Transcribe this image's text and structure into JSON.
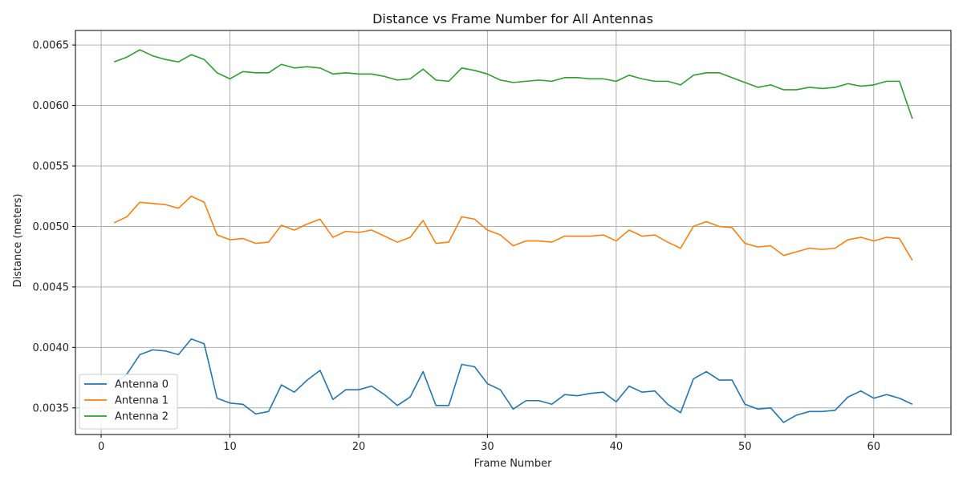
{
  "chart_data": {
    "type": "line",
    "title": "Distance vs Frame Number for All Antennas",
    "xlabel": "Frame Number",
    "ylabel": "Distance (meters)",
    "xlim": [
      -2,
      66
    ],
    "ylim": [
      0.00328,
      0.00662
    ],
    "xticks": [
      0,
      10,
      20,
      30,
      40,
      50,
      60
    ],
    "yticks": [
      0.0035,
      0.004,
      0.0045,
      0.005,
      0.0055,
      0.006,
      0.0065
    ],
    "ytick_labels": [
      "0.0035",
      "0.0040",
      "0.0045",
      "0.0050",
      "0.0055",
      "0.0060",
      "0.0065"
    ],
    "grid": true,
    "legend_position": "lower-left",
    "x": [
      1,
      2,
      3,
      4,
      5,
      6,
      7,
      8,
      9,
      10,
      11,
      12,
      13,
      14,
      15,
      16,
      17,
      18,
      19,
      20,
      21,
      22,
      23,
      24,
      25,
      26,
      27,
      28,
      29,
      30,
      31,
      32,
      33,
      34,
      35,
      36,
      37,
      38,
      39,
      40,
      41,
      42,
      43,
      44,
      45,
      46,
      47,
      48,
      49,
      50,
      51,
      52,
      53,
      54,
      55,
      56,
      57,
      58,
      59,
      60,
      61,
      62,
      63
    ],
    "series": [
      {
        "name": "Antenna 0",
        "color": "#1f77b4",
        "values": [
          0.0037,
          0.00378,
          0.00394,
          0.00398,
          0.00397,
          0.00394,
          0.00407,
          0.00403,
          0.00358,
          0.00354,
          0.00353,
          0.00345,
          0.00347,
          0.00369,
          0.00363,
          0.00373,
          0.00381,
          0.00357,
          0.00365,
          0.00365,
          0.00368,
          0.00361,
          0.00352,
          0.00359,
          0.0038,
          0.00352,
          0.00352,
          0.00386,
          0.00384,
          0.0037,
          0.00365,
          0.00349,
          0.00356,
          0.00356,
          0.00353,
          0.00361,
          0.0036,
          0.00362,
          0.00363,
          0.00355,
          0.00368,
          0.00363,
          0.00364,
          0.00353,
          0.00346,
          0.00374,
          0.0038,
          0.00373,
          0.00373,
          0.00353,
          0.00349,
          0.0035,
          0.00338,
          0.00344,
          0.00347,
          0.00347,
          0.00348,
          0.00359,
          0.00364,
          0.00358,
          0.00361,
          0.00358,
          0.00353
        ]
      },
      {
        "name": "Antenna 1",
        "color": "#ff7f0e",
        "values": [
          0.00503,
          0.00508,
          0.0052,
          0.00519,
          0.00518,
          0.00515,
          0.00525,
          0.0052,
          0.00493,
          0.00489,
          0.0049,
          0.00486,
          0.00487,
          0.00501,
          0.00497,
          0.00502,
          0.00506,
          0.00491,
          0.00496,
          0.00495,
          0.00497,
          0.00492,
          0.00487,
          0.00491,
          0.00505,
          0.00486,
          0.00487,
          0.00508,
          0.00506,
          0.00497,
          0.00493,
          0.00484,
          0.00488,
          0.00488,
          0.00487,
          0.00492,
          0.00492,
          0.00492,
          0.00493,
          0.00488,
          0.00497,
          0.00492,
          0.00493,
          0.00487,
          0.00482,
          0.005,
          0.00504,
          0.005,
          0.00499,
          0.00486,
          0.00483,
          0.00484,
          0.00476,
          0.00479,
          0.00482,
          0.00481,
          0.00482,
          0.00489,
          0.00491,
          0.00488,
          0.00491,
          0.0049,
          0.00472
        ]
      },
      {
        "name": "Antenna 2",
        "color": "#2ca02c",
        "values": [
          0.00636,
          0.0064,
          0.00646,
          0.00641,
          0.00638,
          0.00636,
          0.00642,
          0.00638,
          0.00627,
          0.00622,
          0.00628,
          0.00627,
          0.00627,
          0.00634,
          0.00631,
          0.00632,
          0.00631,
          0.00626,
          0.00627,
          0.00626,
          0.00626,
          0.00624,
          0.00621,
          0.00622,
          0.0063,
          0.00621,
          0.0062,
          0.00631,
          0.00629,
          0.00626,
          0.00621,
          0.00619,
          0.0062,
          0.00621,
          0.0062,
          0.00623,
          0.00623,
          0.00622,
          0.00622,
          0.0062,
          0.00625,
          0.00622,
          0.0062,
          0.0062,
          0.00617,
          0.00625,
          0.00627,
          0.00627,
          0.00623,
          0.00619,
          0.00615,
          0.00617,
          0.00613,
          0.00613,
          0.00615,
          0.00614,
          0.00615,
          0.00618,
          0.00616,
          0.00617,
          0.0062,
          0.0062,
          0.00589
        ]
      }
    ]
  }
}
